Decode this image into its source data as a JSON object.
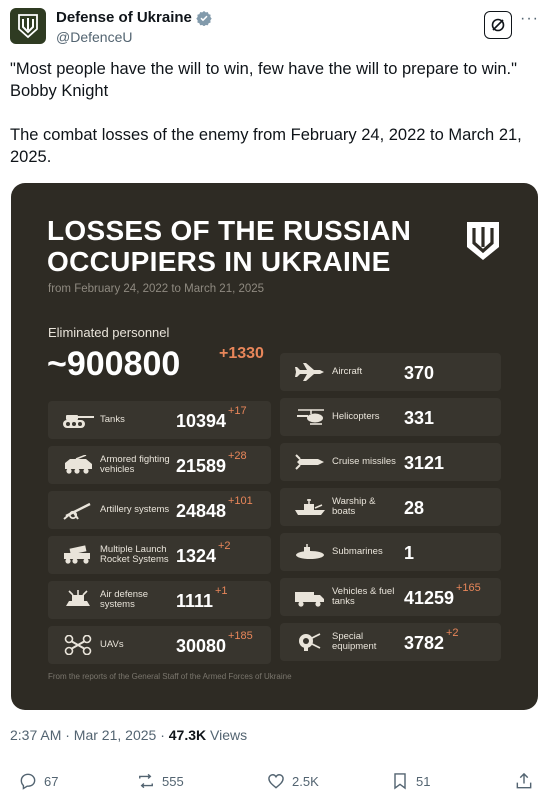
{
  "author": {
    "name": "Defense of Ukraine",
    "handle": "@DefenceU"
  },
  "tweet": {
    "quote": "\"Most people have the will to win, few have the will to prepare to win.\"",
    "quote_author": "Bobby Knight",
    "body": "The combat losses of the enemy from February 24, 2022 to March 21, 2025."
  },
  "card": {
    "title_line1": "LOSSES OF THE RUSSIAN",
    "title_line2": "OCCUPIERS IN UKRAINE",
    "subtitle": "from February 24, 2022 to March 21, 2025",
    "personnel_label": "Eliminated personnel",
    "personnel_value": "~900800",
    "personnel_delta": "+1330",
    "footnote": "From the reports of the General Staff of the Armed Forces of Ukraine",
    "left": [
      {
        "label": "Tanks",
        "value": "10394",
        "delta": "+17",
        "icon": "tank-icon"
      },
      {
        "label": "Armored fighting vehicles",
        "value": "21589",
        "delta": "+28",
        "icon": "afv-icon"
      },
      {
        "label": "Artillery systems",
        "value": "24848",
        "delta": "+101",
        "icon": "artillery-icon"
      },
      {
        "label": "Multiple Launch Rocket Systems",
        "value": "1324",
        "delta": "+2",
        "icon": "mlrs-icon"
      },
      {
        "label": "Air defense systems",
        "value": "1111",
        "delta": "+1",
        "icon": "air-defense-icon"
      },
      {
        "label": "UAVs",
        "value": "30080",
        "delta": "+185",
        "icon": "drone-icon"
      }
    ],
    "right": [
      {
        "label": "Aircraft",
        "value": "370",
        "delta": "",
        "icon": "aircraft-icon"
      },
      {
        "label": "Helicopters",
        "value": "331",
        "delta": "",
        "icon": "helicopter-icon"
      },
      {
        "label": "Cruise missiles",
        "value": "3121",
        "delta": "",
        "icon": "missile-icon"
      },
      {
        "label": "Warship & boats",
        "value": "28",
        "delta": "",
        "icon": "warship-icon"
      },
      {
        "label": "Submarines",
        "value": "1",
        "delta": "",
        "icon": "submarine-icon"
      },
      {
        "label": "Vehicles & fuel tanks",
        "value": "41259",
        "delta": "+165",
        "icon": "truck-icon"
      },
      {
        "label": "Special equipment",
        "value": "3782",
        "delta": "+2",
        "icon": "special-equipment-icon"
      }
    ]
  },
  "meta": {
    "time": "2:37 AM · Mar 21, 2025 · ",
    "views_count": "47.3K",
    "views_label": " Views"
  },
  "actions": {
    "replies": "67",
    "reposts": "555",
    "likes": "2.5K",
    "bookmarks": "51"
  },
  "colors": {
    "card_bg": "#2e2b24",
    "tile_bg": "#38352e",
    "delta": "#e8865a",
    "verified": "#1d9bf0"
  }
}
